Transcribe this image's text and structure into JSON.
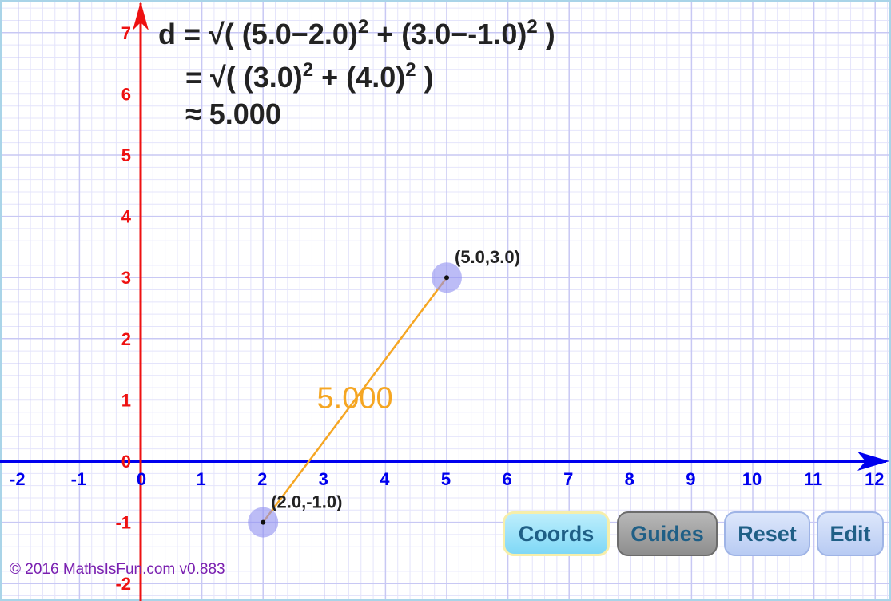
{
  "formula": {
    "line1": {
      "prefix": "d = √( (5.0−2.0)",
      "exp1": "2",
      "middle": " + (3.0−-1.0)",
      "exp2": "2",
      "suffix": " )"
    },
    "line2": {
      "prefix": "= √( (3.0)",
      "exp1": "2",
      "middle": " + (4.0)",
      "exp2": "2",
      "suffix": " )"
    },
    "line3": "≈ 5.000"
  },
  "graph": {
    "x_ticks": [
      "-2",
      "-1",
      "0",
      "1",
      "2",
      "3",
      "4",
      "5",
      "6",
      "7",
      "8",
      "9",
      "10",
      "11",
      "12"
    ],
    "y_ticks": [
      "-2",
      "-1",
      "0",
      "1",
      "2",
      "3",
      "4",
      "5",
      "6",
      "7"
    ],
    "points": [
      {
        "x": 2.0,
        "y": -1.0,
        "label": "(2.0,-1.0)"
      },
      {
        "x": 5.0,
        "y": 3.0,
        "label": "(5.0,3.0)"
      }
    ],
    "distance_label": "5.000",
    "colors": {
      "x_axis": "#0000ee",
      "y_axis": "#ee1111",
      "segment": "#f5a623",
      "point_halo": "#8f8ff0",
      "grid_major": "#c8c8f4",
      "grid_minor": "#e4e4fb"
    }
  },
  "buttons": {
    "coords": "Coords",
    "guides": "Guides",
    "reset": "Reset",
    "edit": "Edit"
  },
  "copyright": "© 2016 MathsIsFun.com v0.883"
}
